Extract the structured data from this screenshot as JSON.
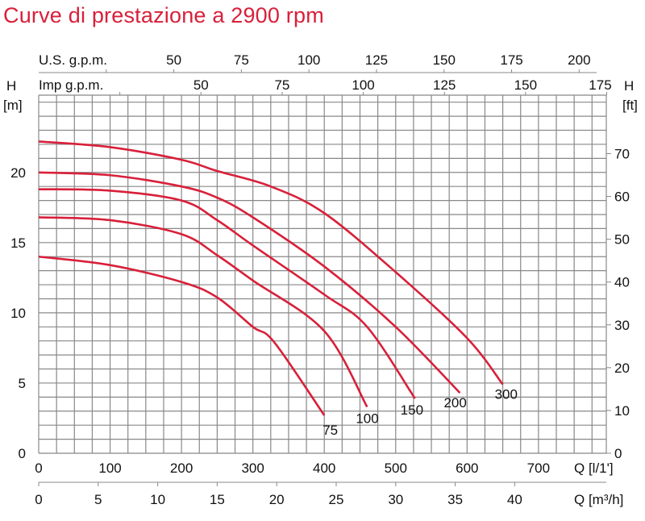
{
  "chart_data": {
    "type": "line",
    "title": "Curve di prestazione a 2900 rpm",
    "x": {
      "label": "Q [l/1']",
      "range": [
        0,
        795
      ],
      "ticks": [
        0,
        100,
        200,
        300,
        400,
        500,
        600,
        700
      ]
    },
    "x_secondary": {
      "label": "Q [m³/h]",
      "ticks": [
        0,
        5,
        10,
        15,
        20,
        25,
        30,
        35,
        40
      ],
      "factor_l_per_min": 16.667
    },
    "x_top_us": {
      "label": "U.S. g.p.m.",
      "ticks": [
        50,
        75,
        100,
        125,
        150,
        175,
        200
      ],
      "minor_ticks": [
        25
      ],
      "factor_l_per_min": 3.785
    },
    "x_top_imp": {
      "label": "Imp g.p.m.",
      "ticks": [
        50,
        75,
        100,
        125,
        150,
        175
      ],
      "minor_ticks": [
        25
      ],
      "factor_l_per_min": 4.546
    },
    "y": {
      "label": "H",
      "unit": "[m]",
      "range": [
        0,
        25.5
      ],
      "ticks": [
        0,
        5,
        10,
        15,
        20
      ]
    },
    "y_right": {
      "label": "H",
      "unit": "[ft]",
      "ticks": [
        0,
        10,
        20,
        30,
        40,
        50,
        60,
        70
      ],
      "factor_m": 0.3048
    },
    "grid": true,
    "color": "#d8203a",
    "series": [
      {
        "name": "75",
        "x": [
          0,
          100,
          200,
          250,
          300,
          330,
          400
        ],
        "y": [
          14.0,
          13.4,
          12.2,
          11.1,
          9.0,
          7.9,
          2.7
        ]
      },
      {
        "name": "100",
        "x": [
          0,
          100,
          200,
          250,
          300,
          400,
          460
        ],
        "y": [
          16.8,
          16.6,
          15.6,
          14.1,
          12.3,
          8.7,
          3.3
        ]
      },
      {
        "name": "150",
        "x": [
          0,
          100,
          200,
          250,
          300,
          400,
          460,
          527
        ],
        "y": [
          18.8,
          18.7,
          18.0,
          16.6,
          14.8,
          11.3,
          9.0,
          3.9
        ]
      },
      {
        "name": "200",
        "x": [
          0,
          100,
          200,
          250,
          300,
          400,
          500,
          590
        ],
        "y": [
          20.0,
          19.8,
          19.0,
          18.2,
          16.8,
          13.3,
          9.0,
          4.3
        ]
      },
      {
        "name": "300",
        "x": [
          0,
          100,
          200,
          250,
          325,
          400,
          500,
          600,
          650
        ],
        "y": [
          22.2,
          21.8,
          20.9,
          20.1,
          19.0,
          17.1,
          12.9,
          8.2,
          4.9
        ]
      }
    ]
  }
}
